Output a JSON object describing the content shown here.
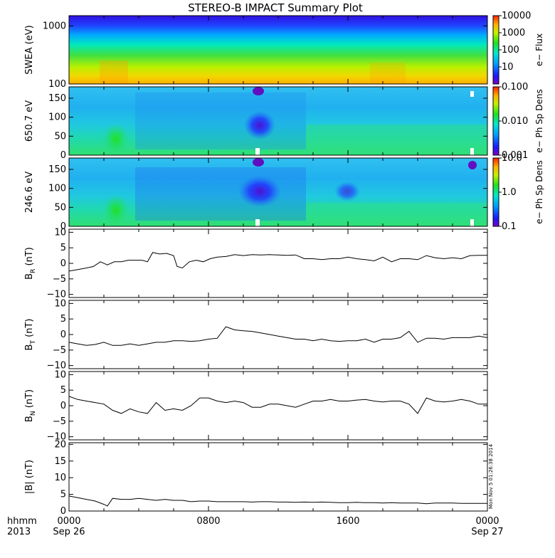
{
  "title": "STEREO-B IMPACT Summary Plot",
  "colors": {
    "background": "#ffffff",
    "line": "#000000"
  },
  "chart_data": [
    {
      "type": "heatmap",
      "panel": "swea",
      "ylabel": "SWEA (eV)",
      "y_scale": "log",
      "ylim": [
        100,
        1500
      ],
      "yticks": [
        "1000",
        "100"
      ],
      "colorbar": {
        "label": "e− Flux",
        "scale": "log",
        "range": [
          1,
          10000
        ],
        "ticks": [
          "10000",
          "1000",
          "100",
          "10"
        ]
      }
    },
    {
      "type": "heatmap",
      "panel": "pad650",
      "ylabel": "650.7 eV",
      "ylim": [
        0,
        180
      ],
      "yticks": [
        "150",
        "100",
        "50",
        "0"
      ],
      "colorbar": {
        "label": "e− Ph Sp Dens",
        "scale": "log",
        "range": [
          0.001,
          0.1
        ],
        "ticks": [
          "0.100",
          "0.010",
          "0.001"
        ]
      }
    },
    {
      "type": "heatmap",
      "panel": "pad246",
      "ylabel": "246.6 eV",
      "ylim": [
        0,
        180
      ],
      "yticks": [
        "150",
        "100",
        "50",
        "0"
      ],
      "colorbar": {
        "label": "e− Ph Sp Dens",
        "scale": "log",
        "range": [
          0.1,
          10
        ],
        "ticks": [
          "10.0",
          "1.0",
          "0.1"
        ]
      }
    },
    {
      "type": "line",
      "panel": "br",
      "ylabel_main": "B",
      "ylabel_sub": "R",
      "ylabel_unit": "(nT)",
      "ylim": [
        -11,
        11
      ],
      "yticks": [
        "10",
        "5",
        "0",
        "−5",
        "−10"
      ],
      "x_hours": [
        0,
        0.5,
        1,
        1.4,
        1.8,
        2.2,
        2.6,
        3.0,
        3.4,
        3.8,
        4.2,
        4.5,
        4.8,
        5.2,
        5.6,
        6.0,
        6.2,
        6.5,
        6.9,
        7.3,
        7.7,
        8.1,
        8.5,
        9.0,
        9.5,
        10,
        10.5,
        11,
        11.5,
        12,
        12.5,
        13,
        13.5,
        14,
        14.5,
        15,
        15.5,
        16,
        16.5,
        17,
        17.5,
        18,
        18.5,
        19,
        19.5,
        20,
        20.5,
        21,
        21.5,
        22,
        22.5,
        23,
        23.5,
        24
      ],
      "values": [
        -2.5,
        -2,
        -1.5,
        -1,
        0.5,
        -0.5,
        0.5,
        0.5,
        1,
        1,
        1,
        0.5,
        3.5,
        3,
        3.2,
        2.5,
        -1,
        -1.5,
        0.5,
        1,
        0.5,
        1.5,
        2,
        2.2,
        2.8,
        2.5,
        2.8,
        2.7,
        2.8,
        2.7,
        2.6,
        2.7,
        1.5,
        1.5,
        1.2,
        1.5,
        1.5,
        2,
        1.5,
        1.2,
        0.8,
        2,
        0.5,
        1.5,
        1.5,
        1.2,
        2.5,
        1.8,
        1.5,
        1.8,
        1.5,
        2.5,
        2.6,
        2.6
      ]
    },
    {
      "type": "line",
      "panel": "bt",
      "ylabel_main": "B",
      "ylabel_sub": "T",
      "ylabel_unit": "(nT)",
      "ylim": [
        -11,
        11
      ],
      "yticks": [
        "10",
        "5",
        "0",
        "−5",
        "−10"
      ],
      "x_hours": [
        0,
        0.5,
        1,
        1.5,
        2,
        2.5,
        3,
        3.5,
        4,
        4.5,
        5,
        5.5,
        6,
        6.5,
        7,
        7.5,
        8,
        8.5,
        9,
        9.5,
        10,
        10.5,
        11,
        11.5,
        12,
        12.5,
        13,
        13.5,
        14,
        14.5,
        15,
        15.5,
        16,
        16.5,
        17,
        17.5,
        18,
        18.5,
        19,
        19.5,
        20,
        20.5,
        21,
        21.5,
        22,
        22.5,
        23,
        23.5,
        24
      ],
      "values": [
        -2.5,
        -3,
        -3.5,
        -3.2,
        -2.5,
        -3.5,
        -3.5,
        -3,
        -3.5,
        -3,
        -2.5,
        -2.5,
        -2,
        -2,
        -2.2,
        -2,
        -1.5,
        -1.2,
        2.5,
        1.5,
        1.2,
        1,
        0.5,
        0,
        -0.5,
        -1,
        -1.5,
        -1.5,
        -2,
        -1.5,
        -2,
        -2.2,
        -2,
        -2,
        -1.5,
        -2.5,
        -1.5,
        -1.5,
        -1,
        1,
        -2.5,
        -1.2,
        -1.2,
        -1.5,
        -1,
        -1,
        -1,
        -0.5,
        -1
      ]
    },
    {
      "type": "line",
      "panel": "bn",
      "ylabel_main": "B",
      "ylabel_sub": "N",
      "ylabel_unit": "(nT)",
      "ylim": [
        -11,
        11
      ],
      "yticks": [
        "10",
        "5",
        "0",
        "−5",
        "−10"
      ],
      "x_hours": [
        0,
        0.5,
        1,
        1.5,
        2,
        2.5,
        3,
        3.5,
        4,
        4.5,
        5,
        5.5,
        6,
        6.5,
        7,
        7.5,
        8,
        8.5,
        9,
        9.5,
        10,
        10.5,
        11,
        11.5,
        12,
        12.5,
        13,
        13.5,
        14,
        14.5,
        15,
        15.5,
        16,
        16.5,
        17,
        17.5,
        18,
        18.5,
        19,
        19.5,
        20,
        20.5,
        21,
        21.5,
        22,
        22.5,
        23,
        23.5,
        24
      ],
      "values": [
        3,
        2,
        1.5,
        1,
        0.5,
        -1.5,
        -2.5,
        -1,
        -2,
        -2.5,
        1,
        -1.5,
        -1,
        -1.5,
        0,
        2.5,
        2.5,
        1.5,
        1,
        1.5,
        1,
        -0.5,
        -0.5,
        0.5,
        0.5,
        0,
        -0.5,
        0.5,
        1.5,
        1.5,
        2,
        1.5,
        1.5,
        1.8,
        2,
        1.5,
        1.2,
        1.5,
        1.5,
        0.5,
        -2.5,
        2.5,
        1.5,
        1.2,
        1.5,
        2,
        1.5,
        0.5,
        0.5
      ]
    },
    {
      "type": "line",
      "panel": "bmag",
      "ylabel_main": "|B| (nT)",
      "ylim": [
        0,
        20.5
      ],
      "yticks": [
        "20",
        "15",
        "10",
        "5",
        "0"
      ],
      "x_hours": [
        0,
        0.5,
        1,
        1.5,
        2,
        2.2,
        2.5,
        3,
        3.5,
        4,
        4.5,
        5,
        5.5,
        6,
        6.5,
        7,
        7.5,
        8,
        8.5,
        9,
        9.5,
        10,
        10.5,
        11,
        11.5,
        12,
        12.5,
        13,
        13.5,
        14,
        14.5,
        15,
        15.5,
        16,
        16.5,
        17,
        17.5,
        18,
        18.5,
        19,
        19.5,
        20,
        20.5,
        21,
        21.5,
        22,
        22.5,
        23,
        23.5,
        24
      ],
      "values": [
        4.5,
        4,
        3.5,
        3,
        2,
        1.5,
        3.8,
        3.5,
        3.5,
        3.8,
        3.5,
        3.2,
        3.5,
        3.2,
        3.2,
        2.8,
        3,
        3,
        2.8,
        2.8,
        2.8,
        2.8,
        2.7,
        2.8,
        2.8,
        2.7,
        2.7,
        2.6,
        2.7,
        2.6,
        2.7,
        2.6,
        2.5,
        2.5,
        2.6,
        2.5,
        2.5,
        2.4,
        2.5,
        2.4,
        2.4,
        2.4,
        2.2,
        2.4,
        2.4,
        2.4,
        2.3,
        2.3,
        2.3,
        2.3
      ]
    }
  ],
  "x_axis": {
    "range_hours": [
      0,
      24
    ],
    "tick_labels": [
      "0000",
      "0800",
      "1600",
      "0000"
    ],
    "date_labels": [
      "Sep 26",
      "Sep 27"
    ],
    "corner_label_top": "hhmm",
    "corner_label_bottom": "2013"
  },
  "timestamp": "Mon Nov  5 01:26:38 2014"
}
